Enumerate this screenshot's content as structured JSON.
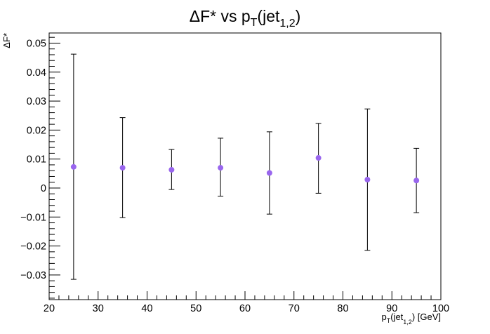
{
  "chart_data": {
    "type": "scatter",
    "title": {
      "delta": "Δ",
      "main": "F* vs p",
      "sub_T": "T",
      "paren_open": "(jet",
      "sub_jet": "1,2",
      "paren_close": ")"
    },
    "xlabel": {
      "p": "p",
      "sub_T": "T",
      "jet": "(jet",
      "sub_jet": "1,2",
      "rest": ") [GeV]"
    },
    "ylabel": "ΔF*",
    "xlim": [
      20,
      100
    ],
    "ylim": [
      -0.0385,
      0.0535
    ],
    "x_ticks": [
      20,
      30,
      40,
      50,
      60,
      70,
      80,
      90,
      100
    ],
    "x_tick_labels": [
      "20",
      "30",
      "40",
      "50",
      "60",
      "70",
      "80",
      "90",
      "100"
    ],
    "y_ticks": [
      -0.03,
      -0.02,
      -0.01,
      0,
      0.01,
      0.02,
      0.03,
      0.04,
      0.05
    ],
    "y_tick_labels": [
      "−0.03",
      "−0.02",
      "−0.01",
      "0",
      "0.01",
      "0.02",
      "0.03",
      "0.04",
      "0.05"
    ],
    "series": [
      {
        "name": "ΔF*",
        "color": "#9966ee",
        "x": [
          25,
          35,
          45,
          55,
          65,
          75,
          85,
          95
        ],
        "y": [
          0.0073,
          0.007,
          0.0063,
          0.007,
          0.0052,
          0.0104,
          0.0029,
          0.0026
        ],
        "err_low": [
          -0.0315,
          -0.0102,
          -0.0005,
          -0.0028,
          -0.009,
          -0.0018,
          -0.0215,
          -0.0085
        ],
        "err_high": [
          0.0462,
          0.0243,
          0.0133,
          0.0172,
          0.0194,
          0.0223,
          0.0273,
          0.0137
        ]
      }
    ],
    "grid": false,
    "legend": "none"
  }
}
